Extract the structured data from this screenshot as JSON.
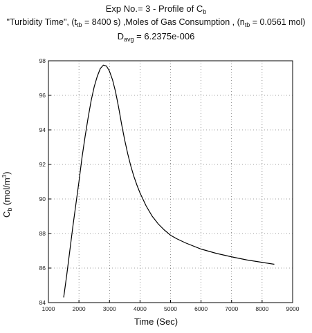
{
  "titles": {
    "line1_main": "Exp No.= 3 - Profile of C",
    "line1_sub": "b",
    "line2_a": "\"Turbidity Time\", (t",
    "line2_a_sub": "tb",
    "line2_b": " = 8400 s) ,Moles of Gas Consumption , (n",
    "line2_b_sub": "tb",
    "line2_c": " = 0.0561 mol)",
    "line3_main": "D",
    "line3_sub": "avg",
    "line3_rest": " = 6.2375e-006"
  },
  "chart_data": {
    "type": "line",
    "xlabel": "Time (Sec)",
    "ylabel_main": "C",
    "ylabel_sub": "b",
    "ylabel_unit_a": " (mol/m",
    "ylabel_unit_sup": "3",
    "ylabel_unit_b": ")",
    "xlim": [
      1000,
      9000
    ],
    "ylim": [
      84,
      98
    ],
    "xticks": [
      1000,
      2000,
      3000,
      4000,
      5000,
      6000,
      7000,
      8000,
      9000
    ],
    "yticks": [
      84,
      86,
      88,
      90,
      92,
      94,
      96,
      98
    ],
    "grid": true,
    "series": [
      {
        "x": [
          1500,
          1600,
          1700,
          1800,
          1900,
          2000,
          2100,
          2200,
          2300,
          2400,
          2500,
          2600,
          2700,
          2800,
          2900,
          3000,
          3100,
          3200,
          3300,
          3400,
          3500,
          3600,
          3700,
          3800,
          3900,
          4000,
          4200,
          4400,
          4600,
          4800,
          5000,
          5200,
          5500,
          6000,
          6500,
          7000,
          7500,
          8000,
          8400
        ],
        "y": [
          84.3,
          85.6,
          87.0,
          88.4,
          89.7,
          91.0,
          92.4,
          93.6,
          94.7,
          95.7,
          96.5,
          97.1,
          97.55,
          97.75,
          97.7,
          97.4,
          96.9,
          96.2,
          95.3,
          94.3,
          93.4,
          92.6,
          91.9,
          91.3,
          90.8,
          90.35,
          89.6,
          89.0,
          88.55,
          88.2,
          87.9,
          87.7,
          87.45,
          87.1,
          86.85,
          86.65,
          86.47,
          86.33,
          86.22
        ]
      }
    ]
  }
}
